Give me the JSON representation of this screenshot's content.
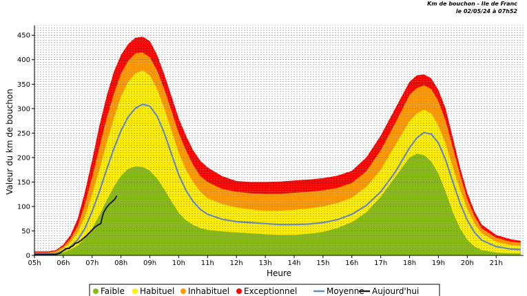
{
  "chart_data": {
    "type": "area",
    "title": "Km de bouchon - Ile de Franc",
    "subtitle": "le 02/05/24 à 07h52",
    "xlabel": "Heure",
    "ylabel": "Valeur du  km de bouchon",
    "ylim": [
      0,
      470
    ],
    "yticks": [
      0,
      50,
      100,
      150,
      200,
      250,
      300,
      350,
      400,
      450
    ],
    "ytick_labels": [
      "0",
      "50",
      "100",
      "150",
      "200",
      "250",
      "300",
      "350",
      "400",
      "450"
    ],
    "xlim": [
      5,
      21.95
    ],
    "xticks": [
      5,
      6,
      7,
      8,
      9,
      10,
      11,
      12,
      13,
      14,
      15,
      16,
      17,
      18,
      19,
      20,
      21
    ],
    "xtick_labels": [
      "05h",
      "06h",
      "07h",
      "08h",
      "09h",
      "10h",
      "11h",
      "12h",
      "13h",
      "14h",
      "15h",
      "16h",
      "17h",
      "18h",
      "19h",
      "20h",
      "21h"
    ],
    "grid": "horizontal-dashed",
    "legend_position": "bottom",
    "x": [
      5,
      5.5,
      5.75,
      6,
      6.25,
      6.5,
      6.75,
      7,
      7.25,
      7.5,
      7.75,
      8,
      8.25,
      8.5,
      8.75,
      9,
      9.25,
      9.5,
      9.75,
      10,
      10.25,
      10.5,
      10.75,
      11,
      11.5,
      12,
      12.5,
      13,
      13.5,
      14,
      14.5,
      15,
      15.5,
      16,
      16.5,
      17,
      17.5,
      18,
      18.25,
      18.5,
      18.75,
      19,
      19.25,
      19.5,
      19.75,
      20,
      20.25,
      20.5,
      21,
      21.5,
      21.85
    ],
    "series": [
      {
        "name": "Exceptionnel",
        "color": "#ff0000",
        "values": [
          8,
          8,
          11,
          22,
          42,
          75,
          130,
          195,
          265,
          325,
          375,
          410,
          432,
          445,
          447,
          438,
          410,
          370,
          325,
          280,
          245,
          215,
          193,
          180,
          162,
          152,
          150,
          150,
          151,
          153,
          155,
          158,
          163,
          173,
          200,
          245,
          300,
          355,
          368,
          370,
          362,
          338,
          300,
          240,
          180,
          128,
          90,
          63,
          42,
          33,
          30
        ]
      },
      {
        "name": "Inhabituel",
        "color": "#ff9900",
        "values": [
          6,
          6,
          9,
          18,
          34,
          60,
          105,
          160,
          220,
          280,
          330,
          372,
          398,
          413,
          415,
          405,
          378,
          340,
          295,
          250,
          215,
          185,
          162,
          150,
          136,
          130,
          127,
          126,
          126,
          128,
          130,
          133,
          138,
          148,
          172,
          215,
          270,
          328,
          342,
          348,
          340,
          315,
          275,
          220,
          165,
          115,
          80,
          55,
          36,
          28,
          26
        ]
      },
      {
        "name": "Habituel",
        "color": "#ffee00",
        "values": [
          4,
          4,
          6,
          14,
          27,
          47,
          80,
          125,
          175,
          230,
          280,
          325,
          355,
          372,
          378,
          368,
          340,
          300,
          255,
          210,
          175,
          150,
          130,
          117,
          105,
          98,
          94,
          91,
          91,
          93,
          96,
          100,
          107,
          118,
          140,
          175,
          225,
          275,
          290,
          298,
          290,
          265,
          228,
          180,
          135,
          95,
          65,
          45,
          28,
          21,
          20
        ]
      },
      {
        "name": "Moyenne",
        "color": "#6688bb",
        "values": [
          3,
          3,
          4,
          9,
          18,
          32,
          55,
          90,
          130,
          175,
          218,
          255,
          283,
          301,
          309,
          305,
          285,
          250,
          207,
          165,
          133,
          110,
          94,
          84,
          74,
          69,
          67,
          65,
          63,
          63,
          64,
          67,
          73,
          84,
          102,
          130,
          170,
          220,
          240,
          251,
          248,
          230,
          195,
          150,
          107,
          72,
          47,
          31,
          18,
          13,
          12
        ]
      },
      {
        "name": "Faible",
        "color": "#88bb11",
        "values": [
          2,
          2,
          3,
          6,
          12,
          20,
          35,
          55,
          82,
          112,
          140,
          163,
          177,
          182,
          181,
          173,
          157,
          135,
          110,
          87,
          72,
          62,
          56,
          52,
          49,
          47,
          45,
          43,
          42,
          42,
          44,
          48,
          56,
          68,
          88,
          120,
          160,
          200,
          208,
          205,
          192,
          167,
          130,
          88,
          55,
          32,
          18,
          11,
          6,
          4,
          4
        ]
      },
      {
        "name": "Aujourd'hui",
        "color": "#1a1a1a",
        "x": [
          5,
          5.5,
          5.75,
          5.9,
          6.0,
          6.1,
          6.2,
          6.25,
          6.35,
          6.4,
          6.5,
          6.6,
          6.7,
          6.8,
          6.9,
          7.0,
          7.1,
          7.2,
          7.3,
          7.35,
          7.4,
          7.5,
          7.6,
          7.7,
          7.8,
          7.85
        ],
        "values": [
          2,
          2,
          2,
          5,
          10,
          14,
          14,
          17,
          20,
          24,
          26,
          30,
          35,
          40,
          46,
          52,
          58,
          62,
          65,
          78,
          88,
          98,
          105,
          110,
          116,
          122
        ]
      }
    ],
    "legend_order": [
      "Faible",
      "Habituel",
      "Inhabituel",
      "Exceptionnel",
      "Moyenne",
      "Aujourd'hui"
    ]
  }
}
